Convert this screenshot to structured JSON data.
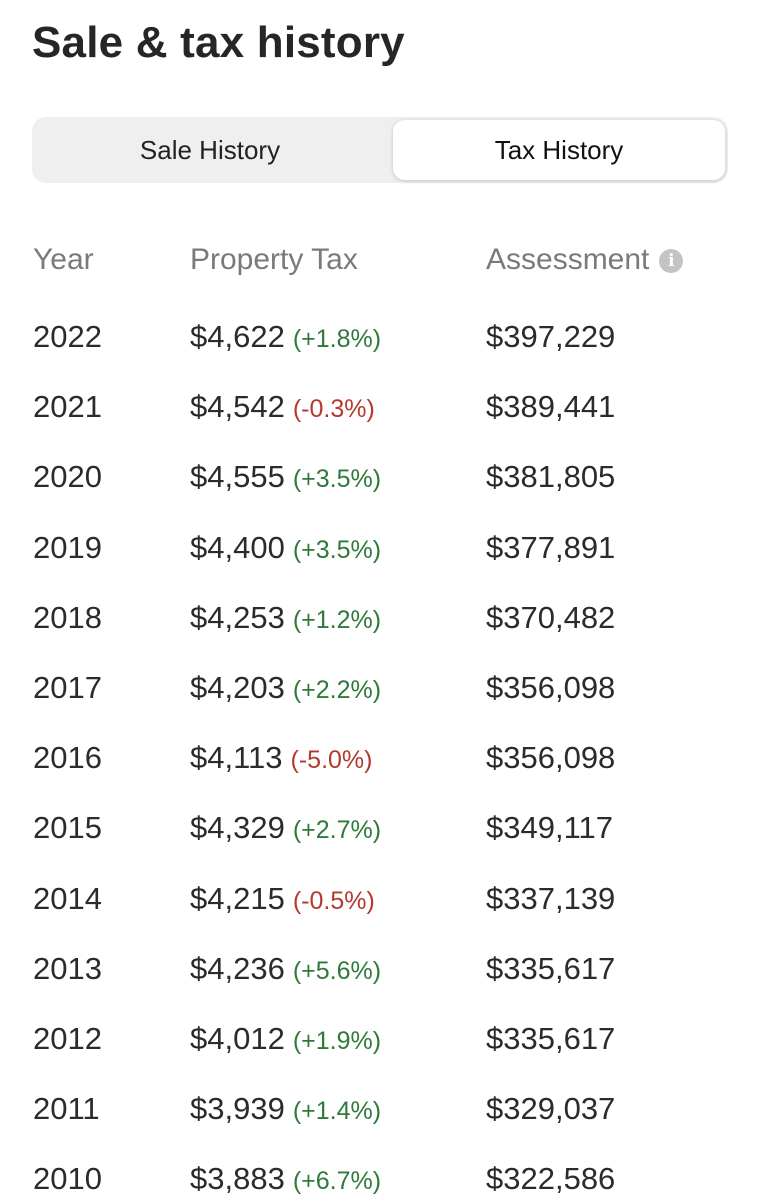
{
  "page_title": "Sale & tax history",
  "tabs": [
    {
      "label": "Sale History",
      "selected": false
    },
    {
      "label": "Tax History",
      "selected": true
    }
  ],
  "table": {
    "headers": {
      "year": "Year",
      "property_tax": "Property Tax",
      "assessment": "Assessment"
    },
    "info_icon": "info-icon",
    "rows": [
      {
        "year": "2022",
        "tax": "$4,622",
        "change": "(+1.8%)",
        "direction": "up",
        "assessment": "$397,229"
      },
      {
        "year": "2021",
        "tax": "$4,542",
        "change": "(-0.3%)",
        "direction": "down",
        "assessment": "$389,441"
      },
      {
        "year": "2020",
        "tax": "$4,555",
        "change": "(+3.5%)",
        "direction": "up",
        "assessment": "$381,805"
      },
      {
        "year": "2019",
        "tax": "$4,400",
        "change": "(+3.5%)",
        "direction": "up",
        "assessment": "$377,891"
      },
      {
        "year": "2018",
        "tax": "$4,253",
        "change": "(+1.2%)",
        "direction": "up",
        "assessment": "$370,482"
      },
      {
        "year": "2017",
        "tax": "$4,203",
        "change": "(+2.2%)",
        "direction": "up",
        "assessment": "$356,098"
      },
      {
        "year": "2016",
        "tax": "$4,113",
        "change": "(-5.0%)",
        "direction": "down",
        "assessment": "$356,098"
      },
      {
        "year": "2015",
        "tax": "$4,329",
        "change": "(+2.7%)",
        "direction": "up",
        "assessment": "$349,117"
      },
      {
        "year": "2014",
        "tax": "$4,215",
        "change": "(-0.5%)",
        "direction": "down",
        "assessment": "$337,139"
      },
      {
        "year": "2013",
        "tax": "$4,236",
        "change": "(+5.6%)",
        "direction": "up",
        "assessment": "$335,617"
      },
      {
        "year": "2012",
        "tax": "$4,012",
        "change": "(+1.9%)",
        "direction": "up",
        "assessment": "$335,617"
      },
      {
        "year": "2011",
        "tax": "$3,939",
        "change": "(+1.4%)",
        "direction": "up",
        "assessment": "$329,037"
      },
      {
        "year": "2010",
        "tax": "$3,883",
        "change": "(+6.7%)",
        "direction": "up",
        "assessment": "$322,586"
      }
    ]
  },
  "colors": {
    "increase": "#2f7a3a",
    "decrease": "#b23a2e",
    "header_text": "#7a7a7a",
    "segment_bg": "#efefef"
  }
}
